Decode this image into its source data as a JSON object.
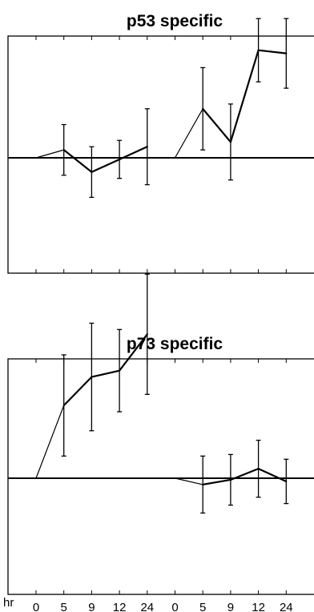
{
  "chart_data": [
    {
      "type": "line",
      "title": "p53 specific",
      "x_unit_label": "hr",
      "categories": [
        "0",
        "5",
        "9",
        "12",
        "24",
        "0",
        "5",
        "9",
        "12",
        "24"
      ],
      "ylim": [
        -4,
        4
      ],
      "baseline": 0,
      "grid": false,
      "segments": [
        {
          "points": [
            [
              0,
              0
            ],
            [
              1,
              0.25
            ],
            [
              2,
              -0.45
            ],
            [
              3,
              -0.05
            ],
            [
              4,
              0.35
            ]
          ],
          "errors": [
            0,
            0.8,
            0.8,
            0.6,
            1.2
          ]
        },
        {
          "points": [
            [
              5,
              0
            ],
            [
              6,
              1.55
            ],
            [
              7,
              0.5
            ],
            [
              8,
              3.4
            ],
            [
              9,
              3.3
            ]
          ],
          "errors": [
            0,
            1.3,
            1.2,
            1.0,
            1.1
          ]
        }
      ]
    },
    {
      "type": "line",
      "title": "p73 specific",
      "x_unit_label": "hr",
      "categories": [
        "0",
        "5",
        "9",
        "12",
        "24",
        "0",
        "5",
        "9",
        "12",
        "24"
      ],
      "ylim": [
        -4,
        4
      ],
      "baseline": 0,
      "grid": false,
      "segments": [
        {
          "points": [
            [
              0,
              0
            ],
            [
              1,
              2.3
            ],
            [
              2,
              3.2
            ],
            [
              3,
              3.4
            ],
            [
              4,
              4.55
            ]
          ],
          "errors": [
            0,
            1.6,
            1.7,
            1.3,
            1.9
          ]
        },
        {
          "points": [
            [
              5,
              0
            ],
            [
              6,
              -0.2
            ],
            [
              7,
              -0.05
            ],
            [
              8,
              0.3
            ],
            [
              9,
              -0.1
            ]
          ],
          "errors": [
            0,
            0.9,
            0.8,
            0.9,
            0.7
          ]
        }
      ]
    }
  ]
}
